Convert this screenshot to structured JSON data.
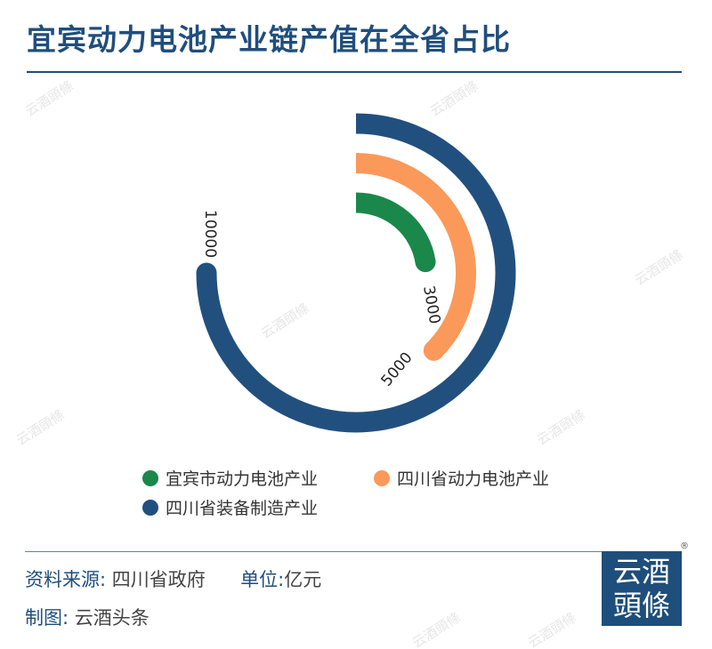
{
  "title": "宜宾动力电池产业链产值在全省占比",
  "watermark": "云酒頭條",
  "chart_data": {
    "type": "radial-bar",
    "angle_max": 13333,
    "series": [
      {
        "name": "宜宾市动力电池产业",
        "value": 3000,
        "label": "3000",
        "color": "#1a884a"
      },
      {
        "name": "四川省动力电池产业",
        "value": 5000,
        "label": "5000",
        "color": "#fb995a"
      },
      {
        "name": "四川省装备制造产业",
        "value": 10000,
        "label": "10000",
        "color": "#21507f"
      }
    ],
    "legend_position": "bottom"
  },
  "footer": {
    "source_label": "资料来源:",
    "source_value": " 四川省政府",
    "unit_label": "单位:",
    "unit_value": "亿元",
    "made_label": "制图:",
    "made_value": "云酒头条"
  },
  "logo": {
    "line1": "云酒",
    "line2": "頭條",
    "reg": "®"
  }
}
